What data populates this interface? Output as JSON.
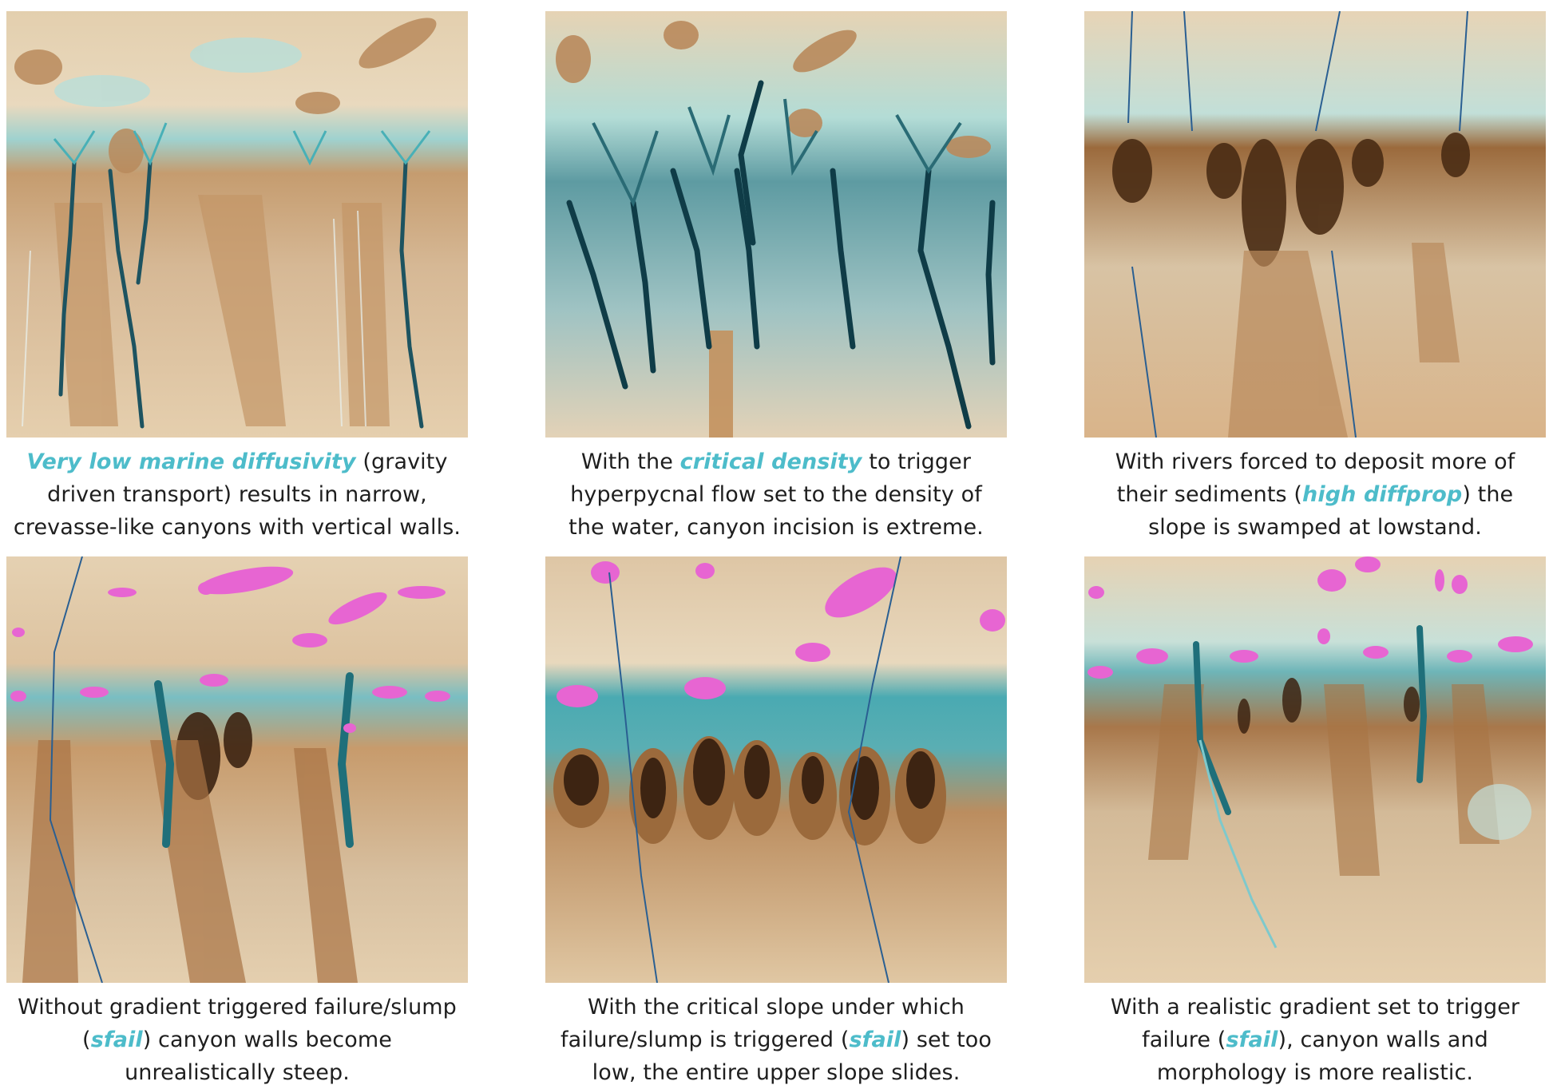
{
  "panels": [
    {
      "id": "p1",
      "variant": "narrow-canyons",
      "caption": {
        "highlight": "Very low marine diffusivity",
        "line1_rest": " (gravity",
        "line2": "driven transport) results in narrow,",
        "line3": "crevasse-like canyons with vertical walls."
      }
    },
    {
      "id": "p2",
      "variant": "extreme-incision",
      "caption": {
        "line1_pre": "With the ",
        "highlight": "critical density",
        "line1_post": " to trigger",
        "line2": "hyperpycnal flow set to the density of",
        "line3": "the water, canyon incision is extreme."
      }
    },
    {
      "id": "p3",
      "variant": "swamped-slope",
      "caption": {
        "line1": "With rivers forced to deposit more of",
        "line2_pre": "their sediments (",
        "highlight": "high diffprop",
        "line2_post": ") the",
        "line3": "slope is swamped at lowstand."
      }
    },
    {
      "id": "p4",
      "variant": "steep-walls",
      "caption": {
        "line1": "Without gradient triggered failure/slump",
        "line2_pre": "(",
        "highlight": "sfail",
        "line2_post": ") canyon walls become",
        "line3": "unrealistically steep."
      }
    },
    {
      "id": "p5",
      "variant": "upper-slope-slides",
      "caption": {
        "line1": "With the critical slope under which",
        "line2_pre": "failure/slump is triggered (",
        "highlight": "sfail",
        "line2_post": ") set too",
        "line3": "low, the entire upper slope slides."
      }
    },
    {
      "id": "p6",
      "variant": "realistic",
      "caption": {
        "line1": "With a realistic gradient set to trigger",
        "line2_pre": "failure (",
        "highlight": "sfail",
        "line2_post": "), canyon walls and",
        "line3": "morphology is more realistic."
      }
    }
  ],
  "colors": {
    "sand": "#e7d3b4",
    "tan": "#c79a6a",
    "brown": "#8a5a30",
    "dark_brown": "#3d2412",
    "teal": "#4fb8bf",
    "dark_teal": "#1f5a66",
    "failure_pink": "#e765d2",
    "highlight_text": "#4dbcca"
  }
}
